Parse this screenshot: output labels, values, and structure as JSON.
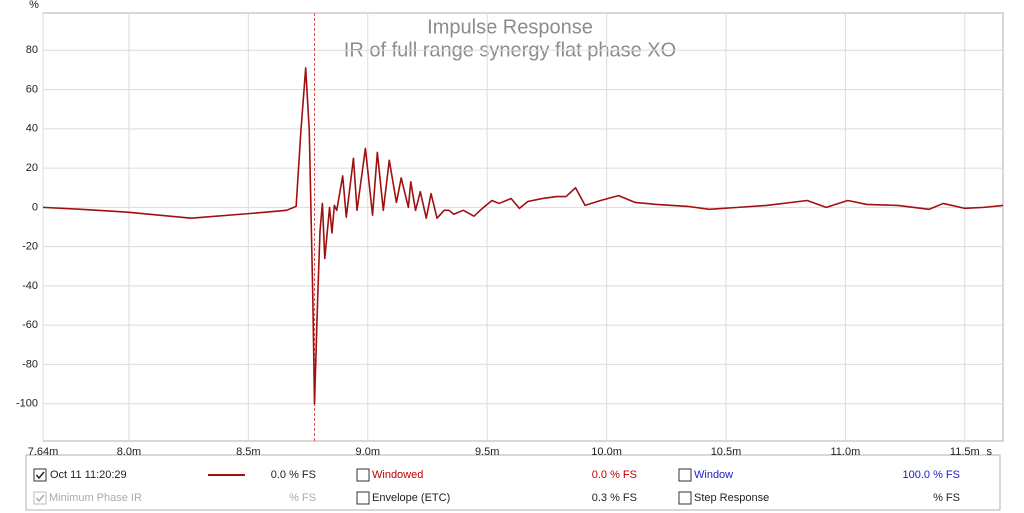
{
  "chart_data": {
    "type": "line",
    "title": "Impulse Response",
    "subtitle": "IR of full range synergy flat phase XO",
    "y_unit": "%",
    "x_unit": "s",
    "xlim": [
      7.64,
      11.66
    ],
    "ylim": [
      -119,
      99
    ],
    "xticks": [
      {
        "value": 7.64,
        "label": "7.64m"
      },
      {
        "value": 8.0,
        "label": "8.0m"
      },
      {
        "value": 8.5,
        "label": "8.5m"
      },
      {
        "value": 9.0,
        "label": "9.0m"
      },
      {
        "value": 9.5,
        "label": "9.5m"
      },
      {
        "value": 10.0,
        "label": "10.0m"
      },
      {
        "value": 10.5,
        "label": "10.5m"
      },
      {
        "value": 11.0,
        "label": "11.0m"
      },
      {
        "value": 11.5,
        "label": "11.5m"
      }
    ],
    "yticks": [
      -100,
      -80,
      -60,
      -40,
      -20,
      0,
      20,
      40,
      60,
      80
    ],
    "grid": true,
    "cursor_x": 8.777,
    "x": [
      7.64,
      7.8,
      8.0,
      8.26,
      8.52,
      8.66,
      8.7,
      8.72,
      8.74,
      8.755,
      8.77,
      8.777,
      8.79,
      8.8,
      8.81,
      8.82,
      8.84,
      8.85,
      8.86,
      8.87,
      8.895,
      8.91,
      8.94,
      8.955,
      8.99,
      9.02,
      9.04,
      9.065,
      9.09,
      9.12,
      9.14,
      9.17,
      9.18,
      9.2,
      9.22,
      9.245,
      9.265,
      9.29,
      9.32,
      9.34,
      9.36,
      9.4,
      9.445,
      9.48,
      9.52,
      9.55,
      9.6,
      9.635,
      9.67,
      9.73,
      9.79,
      9.83,
      9.87,
      9.91,
      9.975,
      10.05,
      10.12,
      10.21,
      10.34,
      10.43,
      10.55,
      10.67,
      10.84,
      10.92,
      11.01,
      11.09,
      11.22,
      11.35,
      11.41,
      11.5,
      11.58,
      11.66
    ],
    "series": [
      {
        "name": "Oct 11 11:20:29",
        "color": "#a01010",
        "readout": "0.0 % FS",
        "checked": true,
        "values": [
          0,
          -1,
          -2.5,
          -5.5,
          -3,
          -1.5,
          0.5,
          39,
          71,
          39,
          -47,
          -100,
          -47,
          -12,
          2,
          -26,
          0,
          -13,
          1,
          -1.5,
          16,
          -5,
          25,
          -1.5,
          30,
          -4,
          28,
          -1.5,
          24,
          2.5,
          15,
          0,
          13,
          -1.5,
          8,
          -5.5,
          7,
          -5.5,
          -1.5,
          -1.5,
          -3.5,
          -1.5,
          -4.5,
          -0.5,
          3.5,
          2,
          4.5,
          -0.5,
          3,
          4.5,
          5.5,
          5.5,
          10,
          1,
          3.5,
          6,
          2.5,
          1.5,
          0.5,
          -1,
          0,
          1,
          3.5,
          0,
          3.5,
          1.5,
          1,
          -1,
          2,
          -0.5,
          0,
          1
        ]
      }
    ],
    "traces": [
      {
        "label": "Minimum Phase IR",
        "readout": "% FS",
        "checked": true,
        "color": "#aaaaaa",
        "enabled": false
      },
      {
        "label": "Windowed",
        "readout": "0.0 % FS",
        "checked": false,
        "color": "#c00000",
        "enabled": true
      },
      {
        "label": "Envelope (ETC)",
        "readout": "0.3 % FS",
        "checked": false,
        "color": "#222222",
        "enabled": true
      },
      {
        "label": "Window",
        "readout": "100.0 % FS",
        "checked": false,
        "color": "#1a1acc",
        "enabled": true
      },
      {
        "label": "Step Response",
        "readout": "% FS",
        "checked": false,
        "color": "#222222",
        "enabled": true
      }
    ]
  }
}
